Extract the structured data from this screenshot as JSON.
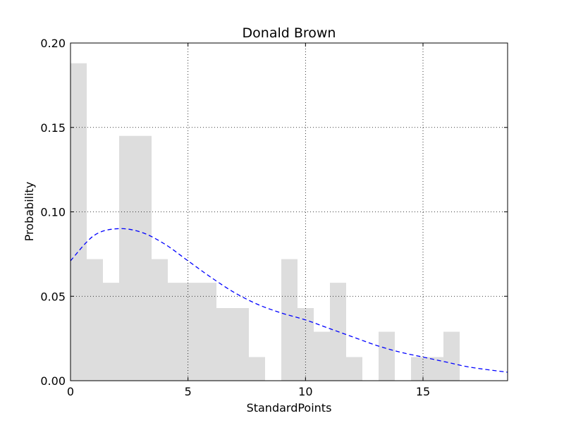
{
  "chart_data": {
    "type": "bar",
    "title": "Donald Brown",
    "xlabel": "StandardPoints",
    "ylabel": "Probability",
    "xlim": [
      0,
      18.6
    ],
    "ylim": [
      0,
      0.2
    ],
    "x_ticks": [
      0,
      5,
      10,
      15
    ],
    "x_tick_labels": [
      "0",
      "5",
      "10",
      "15"
    ],
    "y_ticks": [
      0,
      0.05,
      0.1,
      0.15,
      0.2
    ],
    "y_tick_labels": [
      "0.00",
      "0.05",
      "0.10",
      "0.15",
      "0.20"
    ],
    "grid": true,
    "histogram": {
      "bin_width": 0.69,
      "bin_starts": [
        0.0,
        0.69,
        1.38,
        2.07,
        2.76,
        3.45,
        4.14,
        4.83,
        5.52,
        6.21,
        6.9,
        7.59,
        8.28,
        8.97,
        9.66,
        10.35,
        11.04,
        11.73,
        12.42,
        13.11,
        13.8,
        14.49,
        15.18,
        15.87,
        16.56
      ],
      "values": [
        0.188,
        0.072,
        0.058,
        0.145,
        0.145,
        0.072,
        0.058,
        0.058,
        0.058,
        0.043,
        0.043,
        0.014,
        0.0,
        0.072,
        0.043,
        0.029,
        0.058,
        0.014,
        0.0,
        0.029,
        0.0,
        0.014,
        0.014,
        0.029,
        0.0
      ],
      "color": "#dddddd"
    },
    "density_curve": {
      "style": "dashed",
      "color": "#0000ff",
      "x": [
        0,
        1,
        2,
        3,
        4,
        5,
        6,
        7,
        8,
        9,
        10,
        11,
        12,
        13,
        14,
        15,
        16,
        17,
        18.6
      ],
      "y": [
        0.071,
        0.086,
        0.09,
        0.088,
        0.081,
        0.071,
        0.061,
        0.052,
        0.045,
        0.04,
        0.036,
        0.031,
        0.026,
        0.021,
        0.017,
        0.014,
        0.011,
        0.008,
        0.005
      ]
    }
  }
}
